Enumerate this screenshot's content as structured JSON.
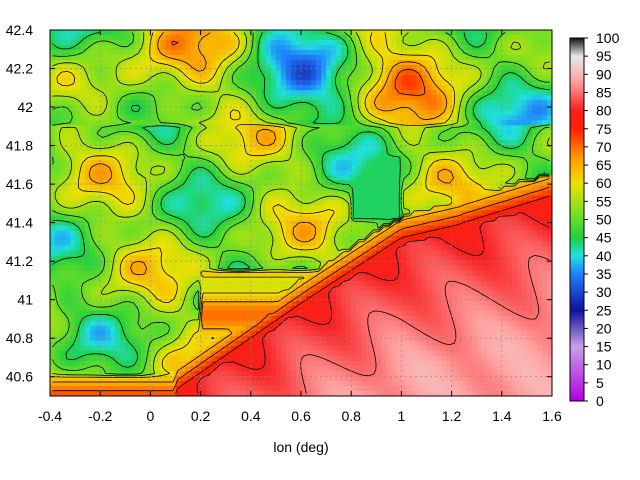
{
  "chart_data": {
    "type": "heatmap",
    "title": "",
    "xlabel": "lon (deg)",
    "ylabel": "",
    "xlim": [
      -0.4,
      1.6
    ],
    "ylim": [
      40.5,
      42.4
    ],
    "x_ticks": [
      "-0.4",
      "-0.2",
      "0",
      "0.2",
      "0.4",
      "0.6",
      "0.8",
      "1",
      "1.2",
      "1.4",
      "1.6"
    ],
    "y_ticks": [
      "40.6",
      "40.8",
      "41",
      "41.2",
      "41.4",
      "41.6",
      "41.8",
      "42",
      "42.2",
      "42.4"
    ],
    "colorbar": {
      "min": 0,
      "max": 100,
      "ticks": [
        "0",
        "5",
        "10",
        "15",
        "20",
        "25",
        "30",
        "35",
        "40",
        "45",
        "50",
        "55",
        "60",
        "65",
        "70",
        "75",
        "80",
        "85",
        "90",
        "95",
        "100"
      ],
      "stops": [
        {
          "value": 0,
          "color": "#b000e0"
        },
        {
          "value": 15,
          "color": "#c8a0e8"
        },
        {
          "value": 25,
          "color": "#1010a0"
        },
        {
          "value": 35,
          "color": "#2080ff"
        },
        {
          "value": 40,
          "color": "#20e0e0"
        },
        {
          "value": 45,
          "color": "#20d040"
        },
        {
          "value": 52,
          "color": "#7ee020"
        },
        {
          "value": 60,
          "color": "#f0e000"
        },
        {
          "value": 67,
          "color": "#ff9a00"
        },
        {
          "value": 75,
          "color": "#ff2000"
        },
        {
          "value": 80,
          "color": "#f82020"
        },
        {
          "value": 88,
          "color": "#ffa0a0"
        },
        {
          "value": 95,
          "color": "#e8e8e8"
        },
        {
          "value": 100,
          "color": "#101010"
        }
      ]
    },
    "grid": true,
    "contours": true
  }
}
